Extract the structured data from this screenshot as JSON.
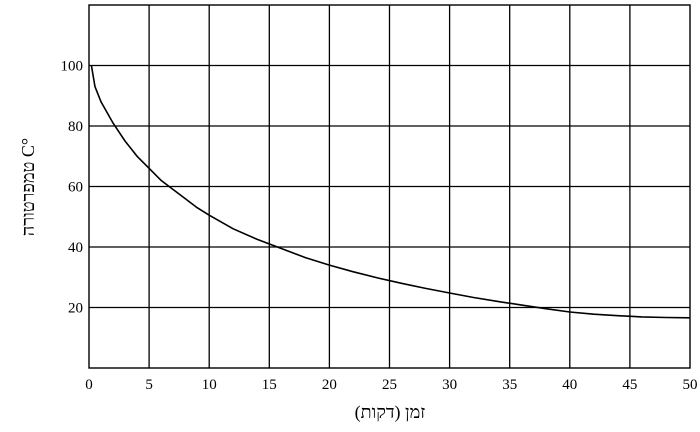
{
  "chart_data": {
    "type": "line",
    "title": "",
    "xlabel": "זמן (דקות)",
    "ylabel": "טמפרטורה C°",
    "xlim": [
      0,
      50
    ],
    "ylim": [
      0,
      120
    ],
    "x_ticks": [
      0,
      5,
      10,
      15,
      20,
      25,
      30,
      35,
      40,
      45,
      50
    ],
    "y_ticks": [
      20,
      40,
      60,
      80,
      100
    ],
    "x_grid_step": 5,
    "y_grid_step": 20,
    "grid": true,
    "legend": "none",
    "line_color": "#000000",
    "series": [
      {
        "x": [
          0.2,
          0.5,
          1,
          2,
          3,
          4,
          5,
          6,
          7,
          8,
          9,
          10,
          12,
          14,
          16,
          18,
          20,
          22,
          24,
          26,
          28,
          30,
          32,
          34,
          36,
          38,
          40,
          42,
          44,
          46,
          48,
          50
        ],
        "values": [
          100,
          93,
          88,
          81,
          75,
          70,
          66,
          62,
          59,
          56,
          53,
          50.5,
          46,
          42.5,
          39.5,
          36.5,
          34,
          31.8,
          29.8,
          28,
          26.3,
          24.8,
          23.3,
          22,
          20.8,
          19.6,
          18.5,
          17.8,
          17.3,
          16.9,
          16.7,
          16.6
        ]
      }
    ]
  }
}
